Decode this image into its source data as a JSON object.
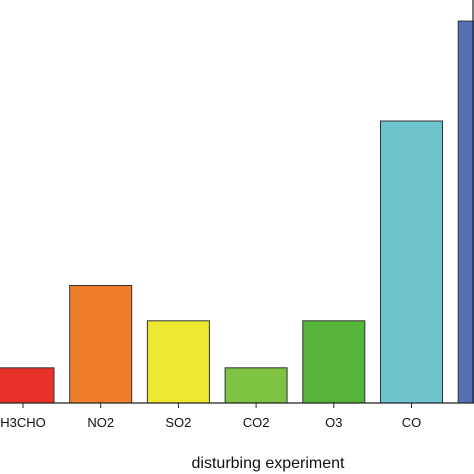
{
  "chart_data": {
    "type": "bar",
    "categories": [
      "H3CHO",
      "NO2",
      "SO2",
      "CO2",
      "O3",
      "CO",
      ""
    ],
    "values": [
      0.6,
      2.0,
      1.4,
      0.6,
      1.4,
      4.8,
      6.5
    ],
    "colors": [
      "#e8312a",
      "#ef7d2c",
      "#ece830",
      "#7ec242",
      "#57b43a",
      "#6fc3cc",
      "#5670b4"
    ],
    "bar_border": "#333333",
    "xlabel": "disturbing experiment",
    "ylabel": "",
    "title": "",
    "ylim": [
      0,
      6.86
    ],
    "grid": false
  }
}
